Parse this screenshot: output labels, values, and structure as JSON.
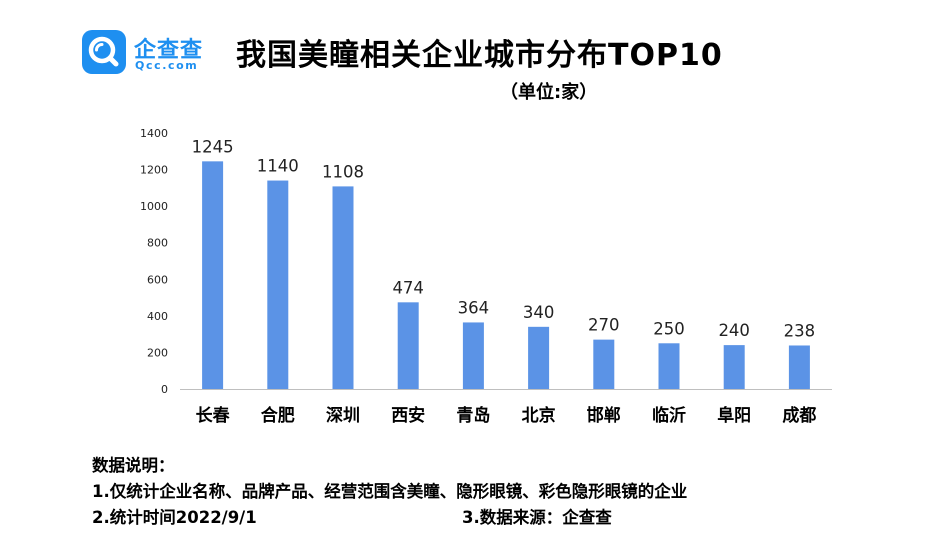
{
  "logo": {
    "name_cn": "企查查",
    "name_en": "Qcc.com",
    "brand_color": "#1e8ff0"
  },
  "notes": {
    "heading": "数据说明：",
    "line1": "1.仅统计企业名称、品牌产品、经营范围含美瞳、隐形眼镜、彩色隐形眼镜的企业",
    "line2": "2.统计时间2022/9/1",
    "line3": "3.数据来源：企查查"
  },
  "chart_data": {
    "type": "bar",
    "title": "我国美瞳相关企业城市分布TOP10",
    "subtitle": "（单位:家）",
    "categories": [
      "长春",
      "合肥",
      "深圳",
      "西安",
      "青岛",
      "北京",
      "邯郸",
      "临沂",
      "阜阳",
      "成都"
    ],
    "values": [
      1245,
      1140,
      1108,
      474,
      364,
      340,
      270,
      250,
      240,
      238
    ],
    "ylim": [
      0,
      1400
    ],
    "yticks": [
      0,
      200,
      400,
      600,
      800,
      1000,
      1200,
      1400
    ],
    "xlabel": "",
    "ylabel": "",
    "grid": false,
    "legend": "none",
    "bar_color": "#5b93e6"
  }
}
